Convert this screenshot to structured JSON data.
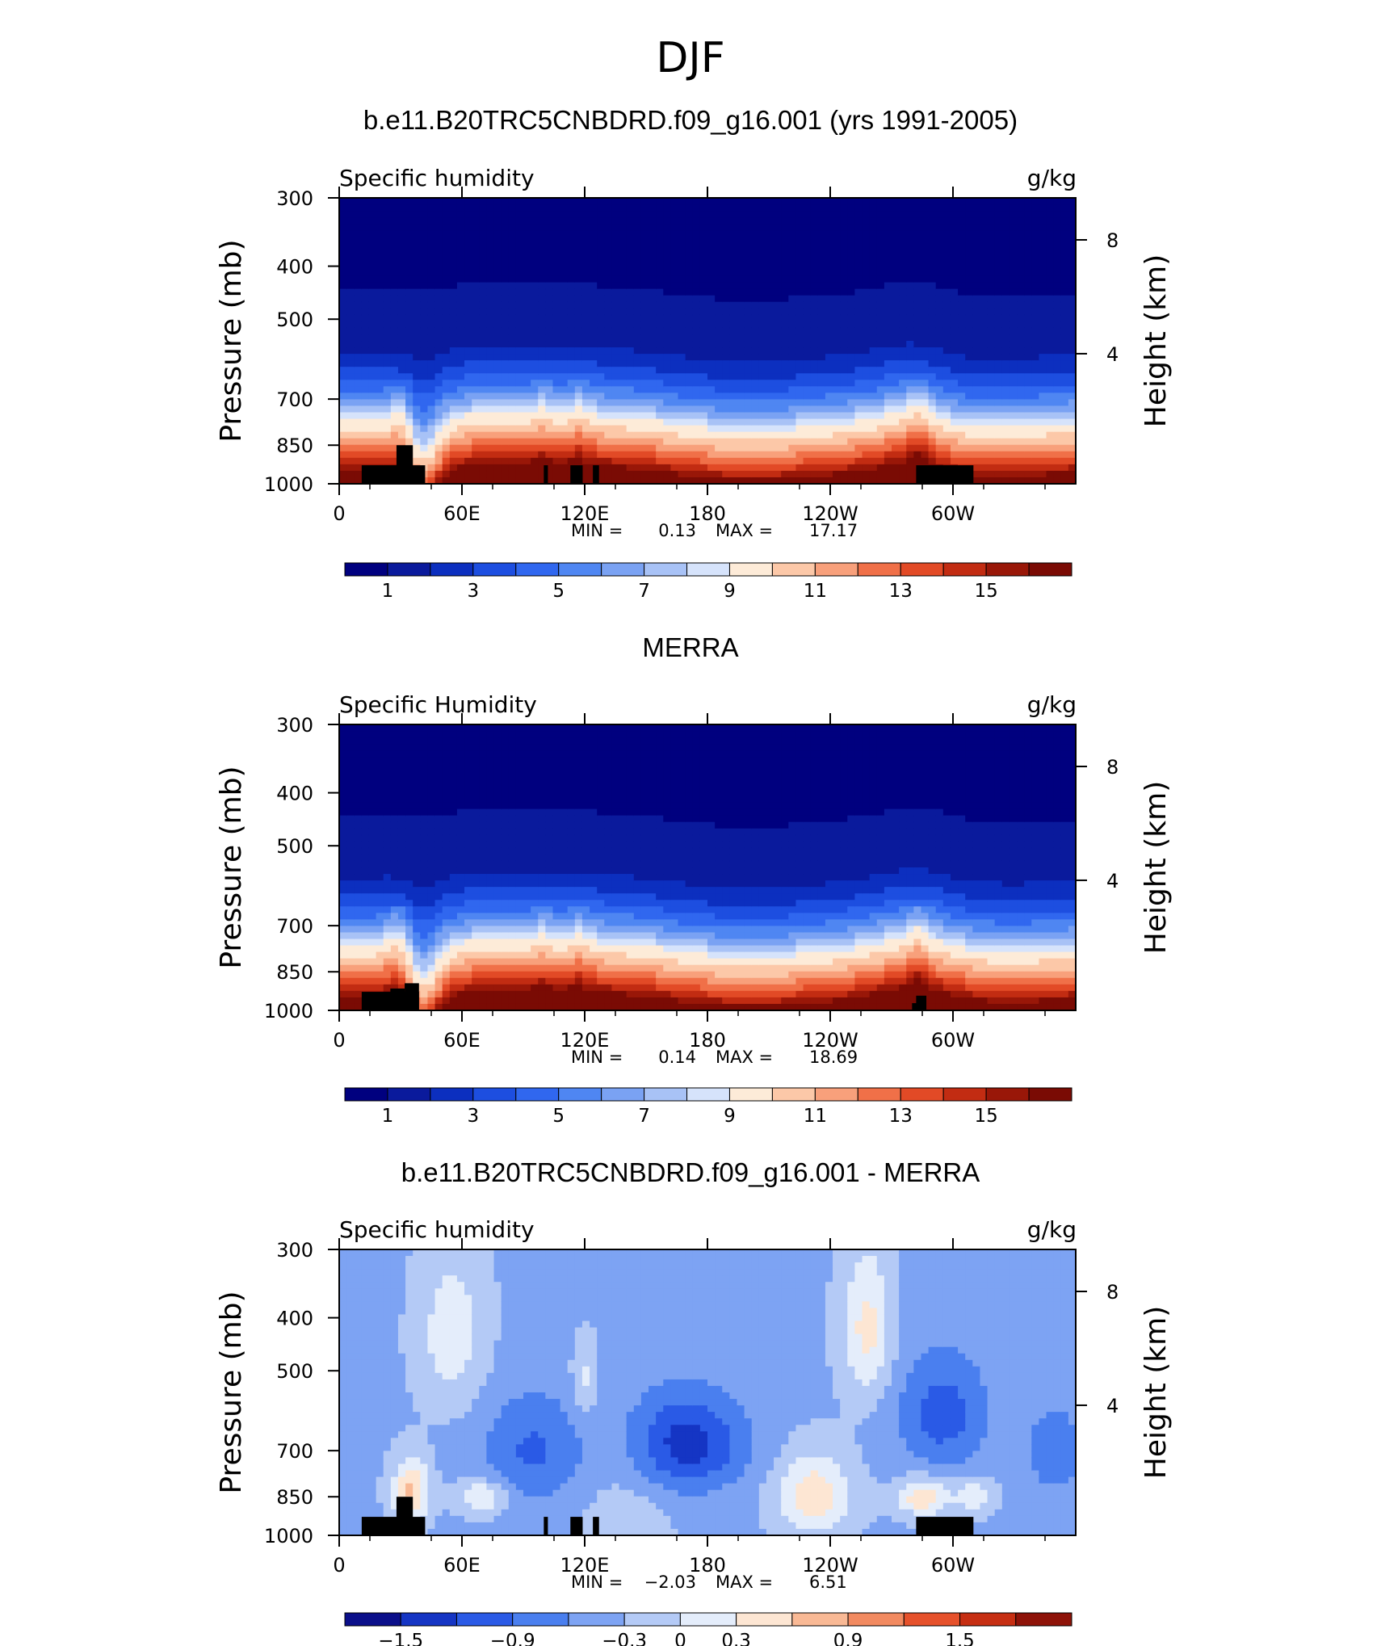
{
  "page": {
    "title": "DJF"
  },
  "panels": [
    {
      "title": "b.e11.B20TRC5CNBDRD.f09_g16.001 (yrs 1991-2005)",
      "left_label": "Specific humidity",
      "right_label": "g/kg",
      "stats": {
        "min_label": "MIN =",
        "min": "0.13",
        "max_label": "MAX =",
        "max": "17.17"
      },
      "colorbar_labels": [
        "1",
        "3",
        "5",
        "7",
        "9",
        "11",
        "13",
        "15"
      ]
    },
    {
      "title": "MERRA",
      "left_label": "Specific Humidity",
      "right_label": "g/kg",
      "stats": {
        "min_label": "MIN =",
        "min": "0.14",
        "max_label": "MAX =",
        "max": "18.69"
      },
      "colorbar_labels": [
        "1",
        "3",
        "5",
        "7",
        "9",
        "11",
        "13",
        "15"
      ]
    },
    {
      "title": "b.e11.B20TRC5CNBDRD.f09_g16.001 - MERRA",
      "left_label": "Specific humidity",
      "right_label": "g/kg",
      "stats": {
        "min_label": "MIN =",
        "min": "−2.03",
        "max_label": "MAX =",
        "max": "6.51"
      },
      "colorbar_labels": [
        "−1.5",
        "−0.9",
        "−0.3",
        "0",
        "0.3",
        "0.9",
        "1.5"
      ]
    }
  ],
  "chart_data": [
    {
      "type": "heatmap",
      "title": "b.e11.B20TRC5CNBDRD.f09_g16.001 (yrs 1991-2005)",
      "ylabel": "Pressure (mb)",
      "y2label": "Height (km)",
      "xticks": [
        "0",
        "60E",
        "120E",
        "180",
        "120W",
        "60W"
      ],
      "yticks": [
        "300",
        "400",
        "500",
        "700",
        "850",
        "1000"
      ],
      "y2ticks": [
        "8",
        "4"
      ],
      "x_range": [
        0,
        360
      ],
      "y_range": [
        1000,
        300
      ],
      "levels": [
        0.5,
        1.5,
        2,
        2.5,
        3,
        3.5,
        4,
        4.5,
        5,
        6,
        7,
        8,
        9,
        10,
        11,
        12
      ],
      "colors": [
        "#00007f",
        "#0a1a9c",
        "#0c2fbf",
        "#1d4ee0",
        "#3067ef",
        "#4f86f2",
        "#7aa2f3",
        "#a8c2f6",
        "#d6e3fb",
        "#fdebd8",
        "#fcc8a8",
        "#f8a07b",
        "#f07048",
        "#e24a26",
        "#c22c12",
        "#991708",
        "#7a0b04"
      ],
      "colorbar_levels": [
        1,
        3,
        5,
        7,
        9,
        11,
        13,
        15
      ],
      "min": 0.13,
      "max": 17.17
    },
    {
      "type": "heatmap",
      "title": "MERRA",
      "ylabel": "Pressure (mb)",
      "y2label": "Height (km)",
      "xticks": [
        "0",
        "60E",
        "120E",
        "180",
        "120W",
        "60W"
      ],
      "yticks": [
        "300",
        "400",
        "500",
        "700",
        "850",
        "1000"
      ],
      "y2ticks": [
        "8",
        "4"
      ],
      "x_range": [
        0,
        360
      ],
      "y_range": [
        1000,
        300
      ],
      "levels": [
        0.5,
        1.5,
        2,
        2.5,
        3,
        3.5,
        4,
        4.5,
        5,
        6,
        7,
        8,
        9,
        10,
        11,
        12
      ],
      "colors": [
        "#00007f",
        "#0a1a9c",
        "#0c2fbf",
        "#1d4ee0",
        "#3067ef",
        "#4f86f2",
        "#7aa2f3",
        "#a8c2f6",
        "#d6e3fb",
        "#fdebd8",
        "#fcc8a8",
        "#f8a07b",
        "#f07048",
        "#e24a26",
        "#c22c12",
        "#991708",
        "#7a0b04"
      ],
      "colorbar_levels": [
        1,
        3,
        5,
        7,
        9,
        11,
        13,
        15
      ],
      "min": 0.14,
      "max": 18.69
    },
    {
      "type": "heatmap",
      "title": "b.e11.B20TRC5CNBDRD.f09_g16.001 - MERRA",
      "ylabel": "Pressure (mb)",
      "y2label": "Height (km)",
      "xticks": [
        "0",
        "60E",
        "120E",
        "180",
        "120W",
        "60W"
      ],
      "yticks": [
        "300",
        "400",
        "500",
        "700",
        "850",
        "1000"
      ],
      "y2ticks": [
        "8",
        "4"
      ],
      "x_range": [
        0,
        360
      ],
      "y_range": [
        1000,
        300
      ],
      "levels": [
        -1.5,
        -1.2,
        -0.9,
        -0.6,
        -0.3,
        0,
        0.3,
        0.6,
        0.9,
        1.2,
        1.5
      ],
      "colors": [
        "#0b0f8a",
        "#1535c4",
        "#2a5ae6",
        "#4a7fef",
        "#7da3f3",
        "#b4caf6",
        "#e4edfb",
        "#fde6d3",
        "#f9b995",
        "#f28a60",
        "#e6512b",
        "#c62e12",
        "#8e1208"
      ],
      "colorbar_levels": [
        -1.5,
        -0.9,
        -0.3,
        0,
        0.3,
        0.9,
        1.5
      ],
      "min": -2.03,
      "max": 6.51
    }
  ]
}
